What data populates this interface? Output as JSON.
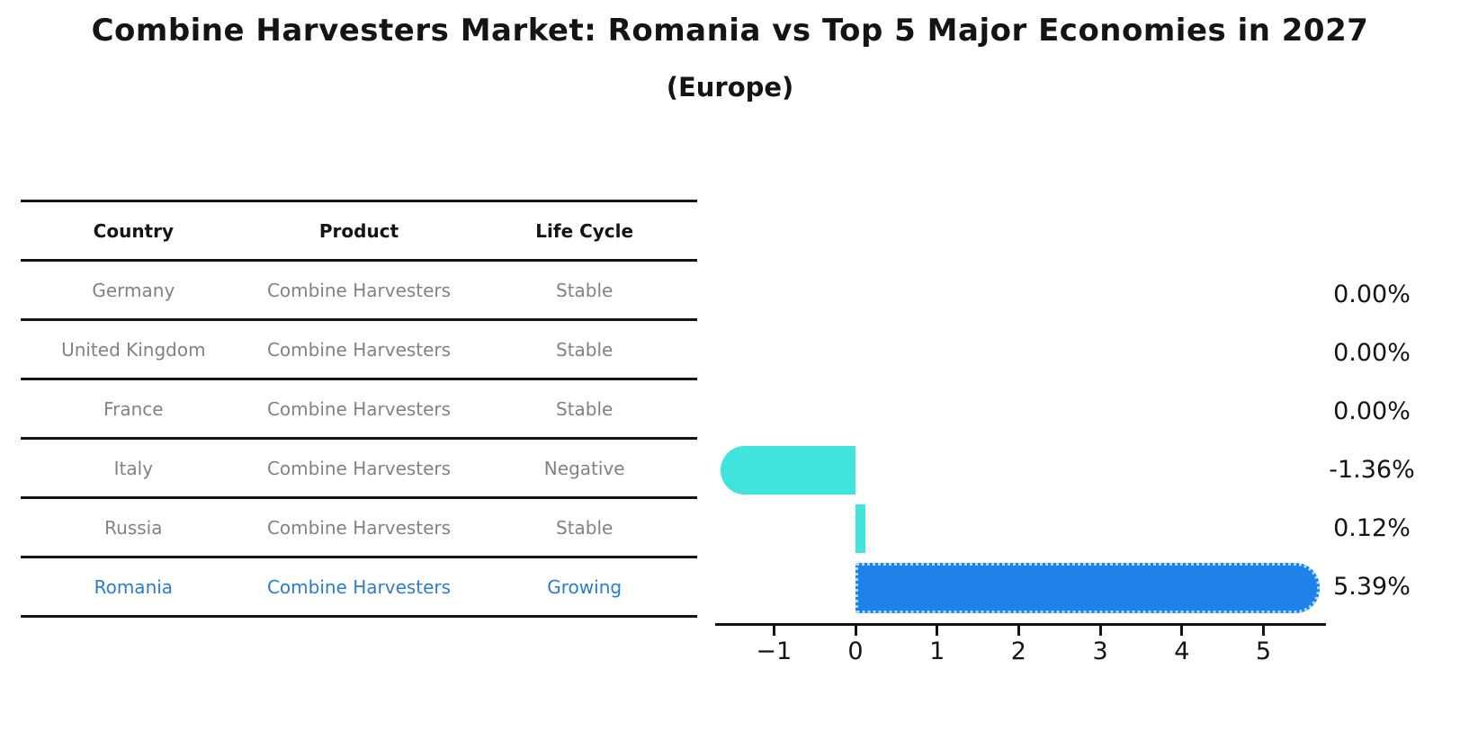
{
  "title": "Combine Harvesters Market: Romania vs Top 5 Major Economies in 2027",
  "subtitle": "(Europe)",
  "colors": {
    "cyan_bar": "#40E4DC",
    "blue_bar": "#1E82E8",
    "blue_bar_dotted_edge": "#A8DAFB",
    "highlight_text": "#2B7CD1",
    "row_text": "#828282",
    "line": "#141414"
  },
  "table": {
    "headers": [
      "Country",
      "Product",
      "Life Cycle"
    ],
    "rows": [
      {
        "country": "Germany",
        "product": "Combine Harvesters",
        "life_cycle": "Stable",
        "highlight": false
      },
      {
        "country": "United Kingdom",
        "product": "Combine Harvesters",
        "life_cycle": "Stable",
        "highlight": false
      },
      {
        "country": "France",
        "product": "Combine Harvesters",
        "life_cycle": "Stable",
        "highlight": false
      },
      {
        "country": "Italy",
        "product": "Combine Harvesters",
        "life_cycle": "Negative",
        "highlight": false
      },
      {
        "country": "Russia",
        "product": "Combine Harvesters",
        "life_cycle": "Stable",
        "highlight": false
      },
      {
        "country": "Romania",
        "product": "Combine Harvesters",
        "life_cycle": "Growing",
        "highlight": true
      }
    ]
  },
  "chart_data": {
    "type": "bar",
    "orientation": "horizontal",
    "title": "Combine Harvesters Market: Romania vs Top 5 Major Economies in 2027 (Europe)",
    "categories": [
      "Germany",
      "United Kingdom",
      "France",
      "Italy",
      "Russia",
      "Romania"
    ],
    "values": [
      0.0,
      0.0,
      0.0,
      -1.36,
      0.12,
      5.39
    ],
    "value_labels": [
      "0.00%",
      "0.00%",
      "0.00%",
      "-1.36%",
      "0.12%",
      "5.39%"
    ],
    "units": "percent",
    "x_ticks": [
      -1,
      0,
      1,
      2,
      3,
      4,
      5
    ],
    "x_tick_labels": [
      "−1",
      "0",
      "1",
      "2",
      "3",
      "4",
      "5"
    ],
    "xlim": [
      -1.72,
      5.77
    ],
    "grid": false,
    "legend": "none",
    "highlight_index": 5,
    "bar_colors": [
      "#40E4DC",
      "#40E4DC",
      "#40E4DC",
      "#40E4DC",
      "#40E4DC",
      "#1E82E8"
    ]
  }
}
